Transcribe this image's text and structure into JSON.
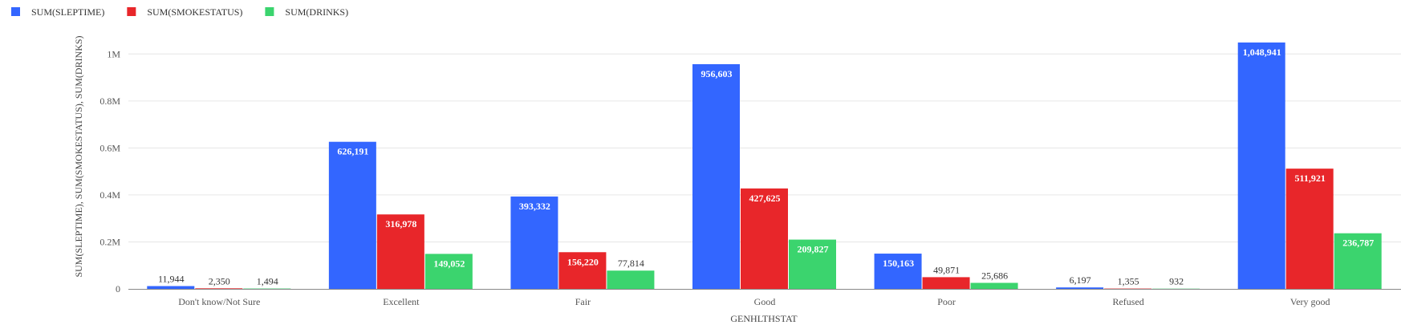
{
  "chart_data": {
    "type": "bar",
    "xlabel": "GENHLTHSTAT",
    "ylabel": "SUM(SLEPTIME), SUM(SMOKESTATUS), SUM(DRINKS)",
    "ylim": [
      0,
      1100000
    ],
    "yticks": [
      {
        "value": 0,
        "label": "0"
      },
      {
        "value": 200000,
        "label": "0.2M"
      },
      {
        "value": 400000,
        "label": "0.4M"
      },
      {
        "value": 600000,
        "label": "0.6M"
      },
      {
        "value": 800000,
        "label": "0.8M"
      },
      {
        "value": 1000000,
        "label": "1M"
      }
    ],
    "grid": true,
    "legend_position": "top-left",
    "categories": [
      "Don't know/Not Sure",
      "Excellent",
      "Fair",
      "Good",
      "Poor",
      "Refused",
      "Very good"
    ],
    "series": [
      {
        "name": "SUM(SLEPTIME)",
        "color": "#3366ff",
        "values": [
          11944,
          626191,
          393332,
          956603,
          150163,
          6197,
          1048941
        ],
        "labels": [
          "11,944",
          "626,191",
          "393,332",
          "956,603",
          "150,163",
          "6,197",
          "1,048,941"
        ]
      },
      {
        "name": "SUM(SMOKESTATUS)",
        "color": "#e8262a",
        "values": [
          2350,
          316978,
          156220,
          427625,
          49871,
          1355,
          511921
        ],
        "labels": [
          "2,350",
          "316,978",
          "156,220",
          "427,625",
          "49,871",
          "1,355",
          "511,921"
        ]
      },
      {
        "name": "SUM(DRINKS)",
        "color": "#3bd46e",
        "values": [
          1494,
          149052,
          77814,
          209827,
          25686,
          932,
          236787
        ],
        "labels": [
          "1,494",
          "149,052",
          "77,814",
          "209,827",
          "25,686",
          "932",
          "236,787"
        ]
      }
    ]
  }
}
